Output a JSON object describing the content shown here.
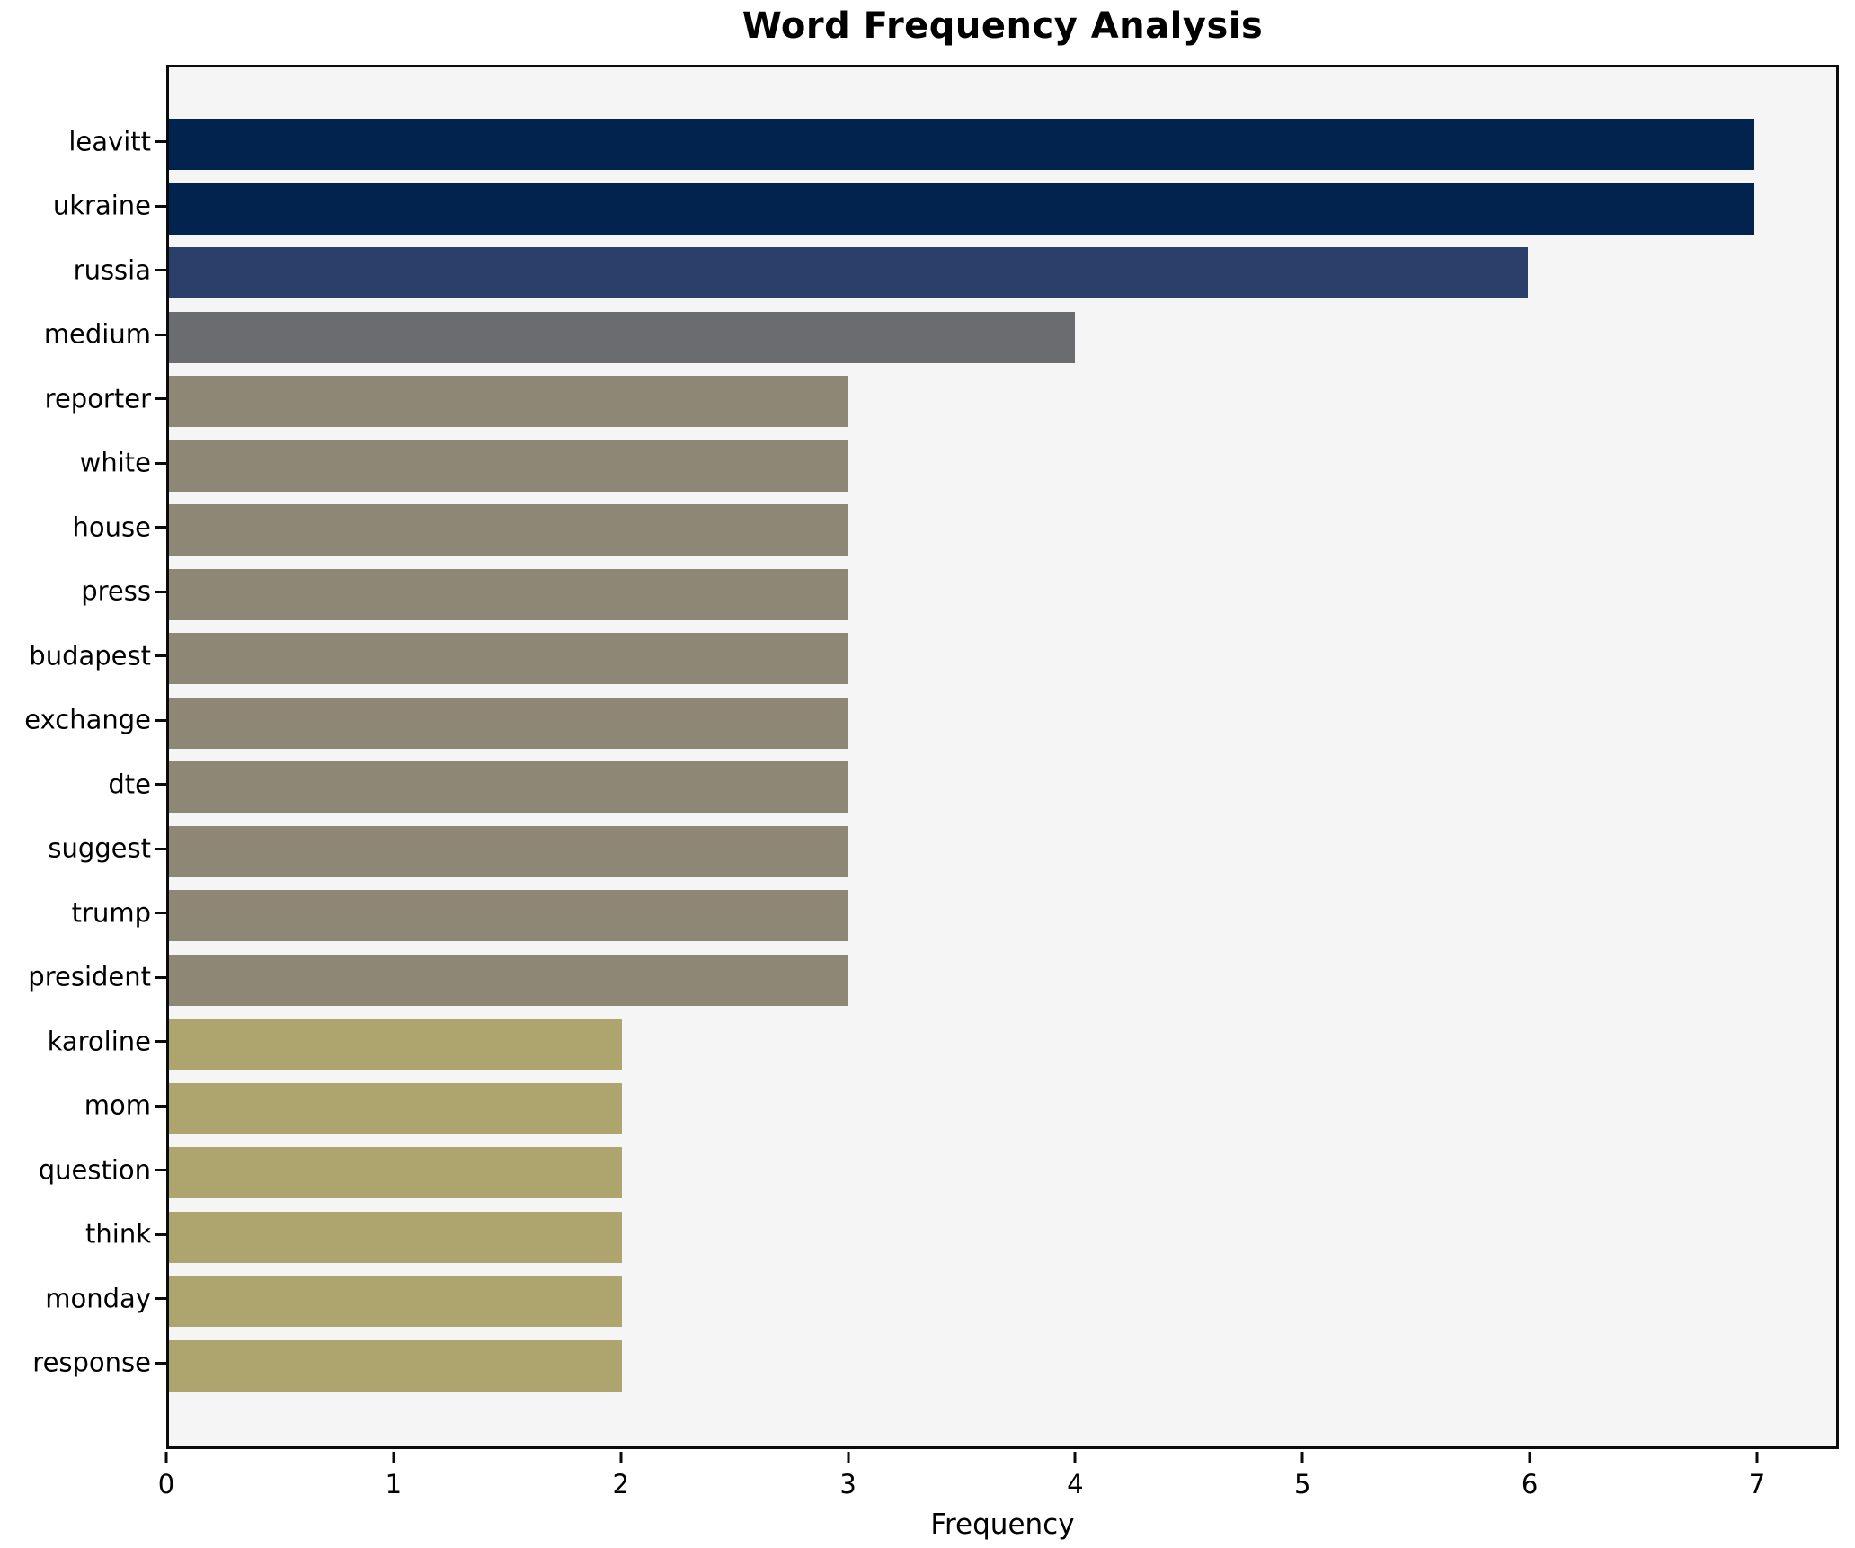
{
  "figure": {
    "background": "#ffffff",
    "plot_background": "#f5f5f5",
    "spine_color": "#0b0b0b"
  },
  "chart_data": {
    "type": "bar",
    "orientation": "horizontal",
    "title": "Word Frequency Analysis",
    "xlabel": "Frequency",
    "ylabel": "",
    "categories": [
      "leavitt",
      "ukraine",
      "russia",
      "medium",
      "reporter",
      "white",
      "house",
      "press",
      "budapest",
      "exchange",
      "dte",
      "suggest",
      "trump",
      "president",
      "karoline",
      "mom",
      "question",
      "think",
      "monday",
      "response"
    ],
    "values": [
      7,
      7,
      6,
      4,
      3,
      3,
      3,
      3,
      3,
      3,
      3,
      3,
      3,
      3,
      2,
      2,
      2,
      2,
      2,
      2
    ],
    "bar_colors": [
      "#02234e",
      "#02234e",
      "#2a3f6a",
      "#6b6c70",
      "#8e8776",
      "#8e8776",
      "#8e8776",
      "#8e8776",
      "#8e8776",
      "#8e8776",
      "#8e8776",
      "#8e8776",
      "#8e8776",
      "#8e8776",
      "#ada46e",
      "#ada46e",
      "#ada46e",
      "#ada46e",
      "#ada46e",
      "#ada46e"
    ],
    "x_ticks": [
      "0",
      "1",
      "2",
      "3",
      "4",
      "5",
      "6",
      "7"
    ],
    "xlim": [
      0,
      7.36
    ],
    "grid": false,
    "legend_position": "none"
  }
}
